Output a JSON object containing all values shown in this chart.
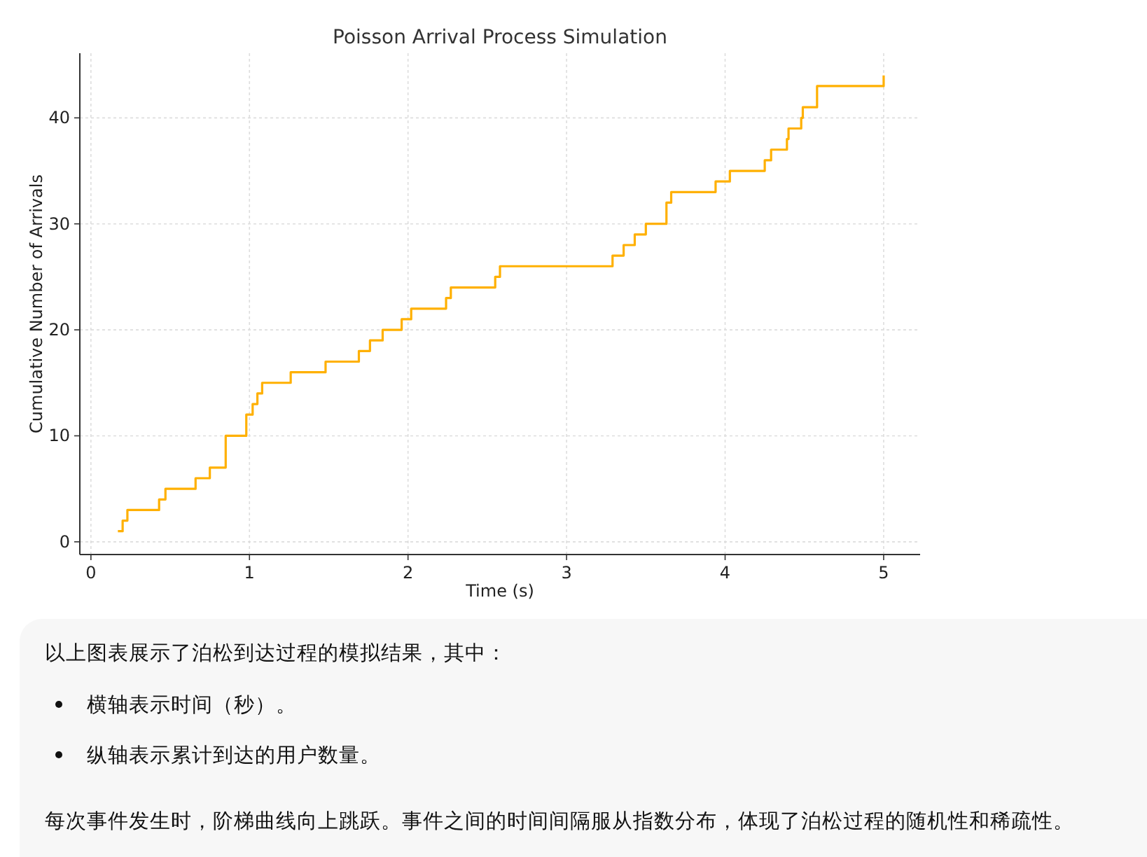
{
  "chart_data": {
    "type": "step",
    "title": "Poisson Arrival Process Simulation",
    "xlabel": "Time (s)",
    "ylabel": "Cumulative Number of Arrivals",
    "x": [
      0.17,
      0.2,
      0.23,
      0.43,
      0.47,
      0.66,
      0.75,
      0.85,
      0.98,
      0.98,
      1.02,
      1.05,
      1.08,
      1.26,
      1.48,
      1.69,
      1.76,
      1.84,
      1.96,
      2.02,
      2.24,
      2.27,
      2.55,
      2.58,
      3.29,
      3.36,
      3.43,
      3.5,
      3.63,
      3.63,
      3.66,
      3.94,
      4.03,
      4.25,
      4.29,
      4.39,
      4.4,
      4.48,
      4.49,
      4.58,
      4.58,
      5.0
    ],
    "values": [
      1,
      2,
      3,
      4,
      5,
      6,
      7,
      10,
      11,
      12,
      13,
      14,
      15,
      16,
      17,
      18,
      19,
      20,
      21,
      22,
      23,
      24,
      25,
      26,
      27,
      28,
      29,
      30,
      31,
      32,
      33,
      34,
      35,
      36,
      37,
      38,
      39,
      40,
      41,
      42,
      43,
      44
    ],
    "color": "#ffb000",
    "xlim": [
      -0.07,
      5.23
    ],
    "ylim": [
      -1.2,
      46.1
    ],
    "xticks": [
      0,
      1,
      2,
      3,
      4,
      5
    ],
    "yticks": [
      0,
      10,
      20,
      30,
      40
    ],
    "grid": true,
    "line_style": "solid",
    "annotations": [
      "以上图表展示了泊松到达过程的模拟结果，其中：",
      "横轴表示时间（秒）。",
      "纵轴表示累计到达的用户数量。",
      "每次事件发生时，阶梯曲线向上跳跃。事件之间的时间间隔服从指数分布，体现了泊松过程的随机性和稀疏性。"
    ]
  }
}
